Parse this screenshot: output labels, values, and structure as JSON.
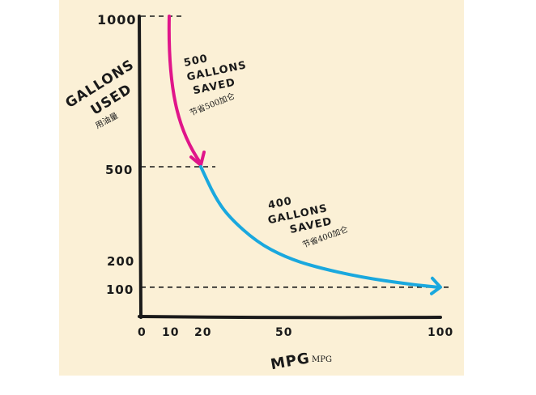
{
  "colors": {
    "background": "#fbf0d6",
    "axis": "#1a1a1a",
    "first_segment": "#e0158a",
    "second_segment": "#1aa8de"
  },
  "chart_data": {
    "type": "line",
    "xlabel": "MPG",
    "xlabel_secondary": "MPG",
    "ylabel": "GALLONS USED",
    "ylabel_secondary": "用油量",
    "x_ticks": [
      "0",
      "10",
      "20",
      "50",
      "100"
    ],
    "y_ticks": [
      "1000",
      "500",
      "200",
      "100"
    ],
    "xlim": [
      0,
      100
    ],
    "ylim": [
      0,
      1000
    ],
    "x_axis_scale": "tick-spaced",
    "grid": false,
    "reference_lines": [
      {
        "y": 1000,
        "from_x": 0,
        "to_x": 10
      },
      {
        "y": 500,
        "from_x": 0,
        "to_x": 20
      },
      {
        "y": 100,
        "from_x": 0,
        "to_x": 100
      }
    ],
    "series": [
      {
        "x": [
          10,
          20
        ],
        "y": [
          1000,
          500
        ],
        "color": "#e0158a"
      },
      {
        "x": [
          20,
          25,
          30,
          40,
          50,
          60,
          75,
          90,
          100
        ],
        "y": [
          500,
          400,
          333,
          250,
          200,
          167,
          133,
          111,
          100
        ],
        "color": "#1aa8de"
      }
    ],
    "annotations": [
      {
        "lines": [
          "500",
          "GALLONS",
          "SAVED"
        ],
        "subtext": "节省500加仑",
        "color": "#1a1a1a"
      },
      {
        "lines": [
          "400",
          "GALLONS",
          "SAVED"
        ],
        "subtext": "节省400加仑",
        "color": "#1a1a1a"
      }
    ]
  }
}
